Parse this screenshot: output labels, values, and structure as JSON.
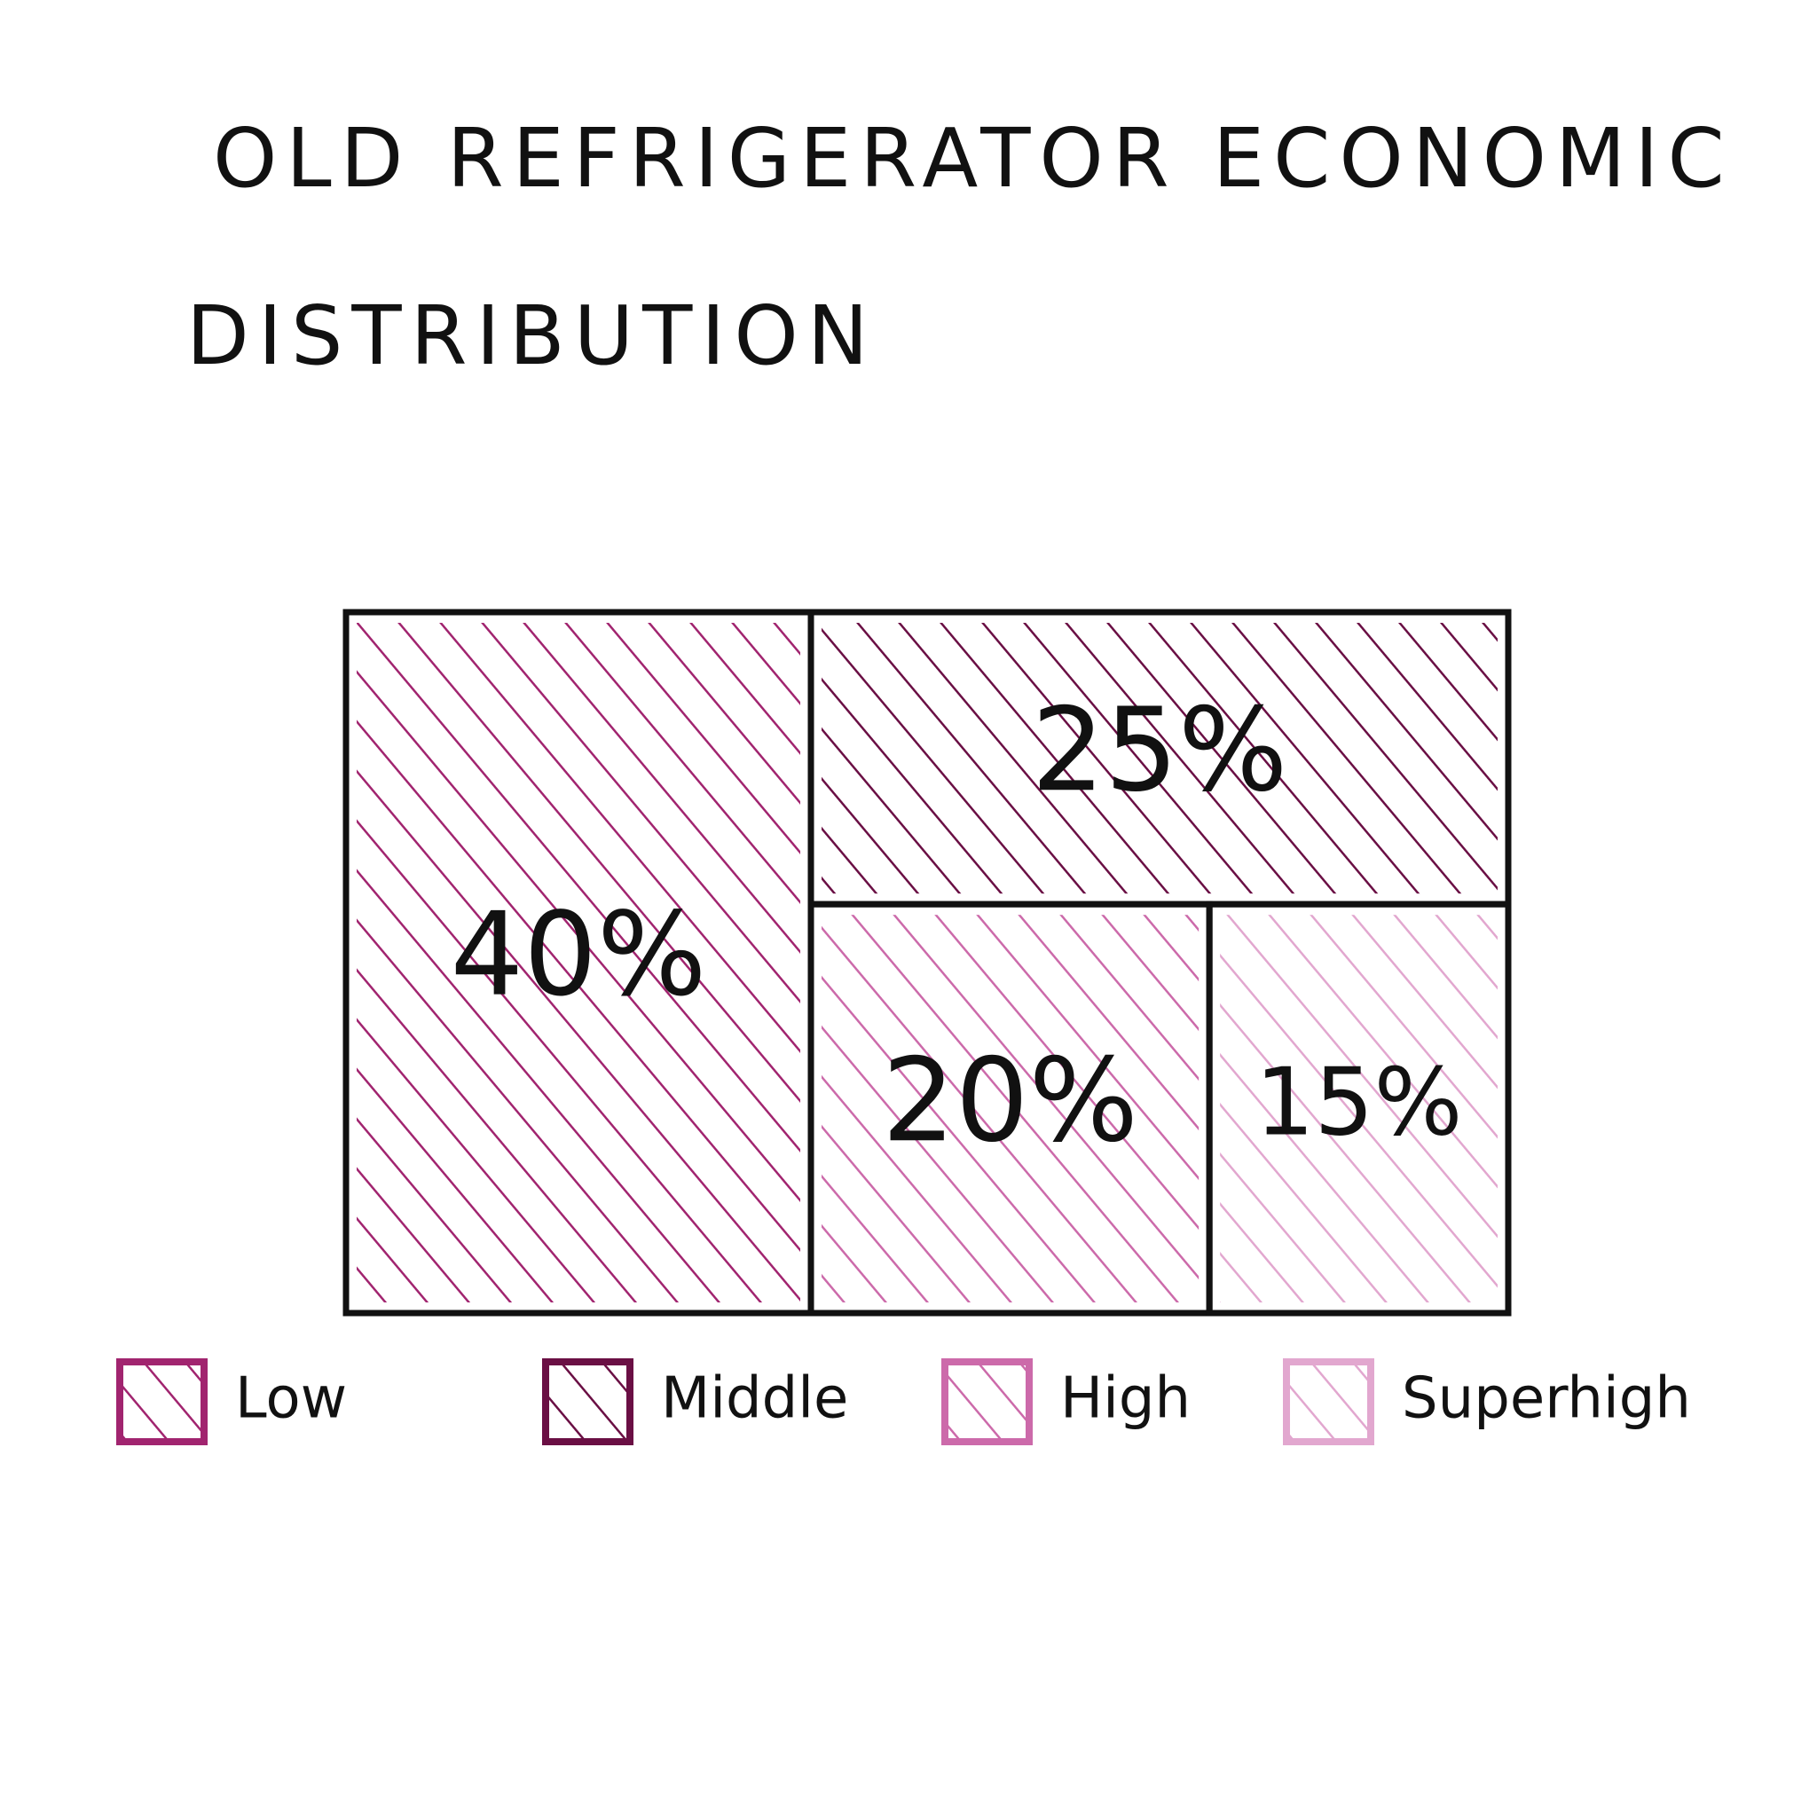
{
  "chart_data": {
    "type": "treemap",
    "title": "OLD REFRIGERATOR ECONOMIC DISTRIBUTION",
    "categories": [
      "Low",
      "Middle",
      "High",
      "Superhigh"
    ],
    "values": [
      40,
      25,
      20,
      15
    ],
    "value_labels": [
      "40%",
      "25%",
      "20%",
      "15%"
    ],
    "colors": [
      "#a1246f",
      "#6a0f44",
      "#cc6aaa",
      "#e2a7cf"
    ]
  }
}
